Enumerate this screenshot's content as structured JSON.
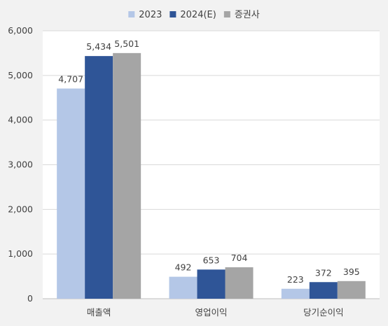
{
  "chart_data": {
    "type": "bar",
    "categories": [
      "매출액",
      "영업이익",
      "당기순이익"
    ],
    "series": [
      {
        "name": "2023",
        "color": "#b4c7e7",
        "values": [
          4707,
          492,
          223
        ]
      },
      {
        "name": "2024(E)",
        "color": "#2f5597",
        "values": [
          5434,
          653,
          372
        ]
      },
      {
        "name": "증권사",
        "color": "#a5a5a5",
        "values": [
          5501,
          704,
          395
        ]
      }
    ],
    "data_labels": [
      [
        "4,707",
        "492",
        "223"
      ],
      [
        "5,434",
        "653",
        "372"
      ],
      [
        "5,501",
        "704",
        "395"
      ]
    ],
    "ylim": [
      0,
      6000
    ],
    "yticks": [
      0,
      1000,
      2000,
      3000,
      4000,
      5000,
      6000
    ],
    "ytick_labels": [
      "0",
      "1,000",
      "2,000",
      "3,000",
      "4,000",
      "5,000",
      "6,000"
    ],
    "grid": true,
    "legend_position": "top-center",
    "title": "",
    "xlabel": "",
    "ylabel": ""
  }
}
